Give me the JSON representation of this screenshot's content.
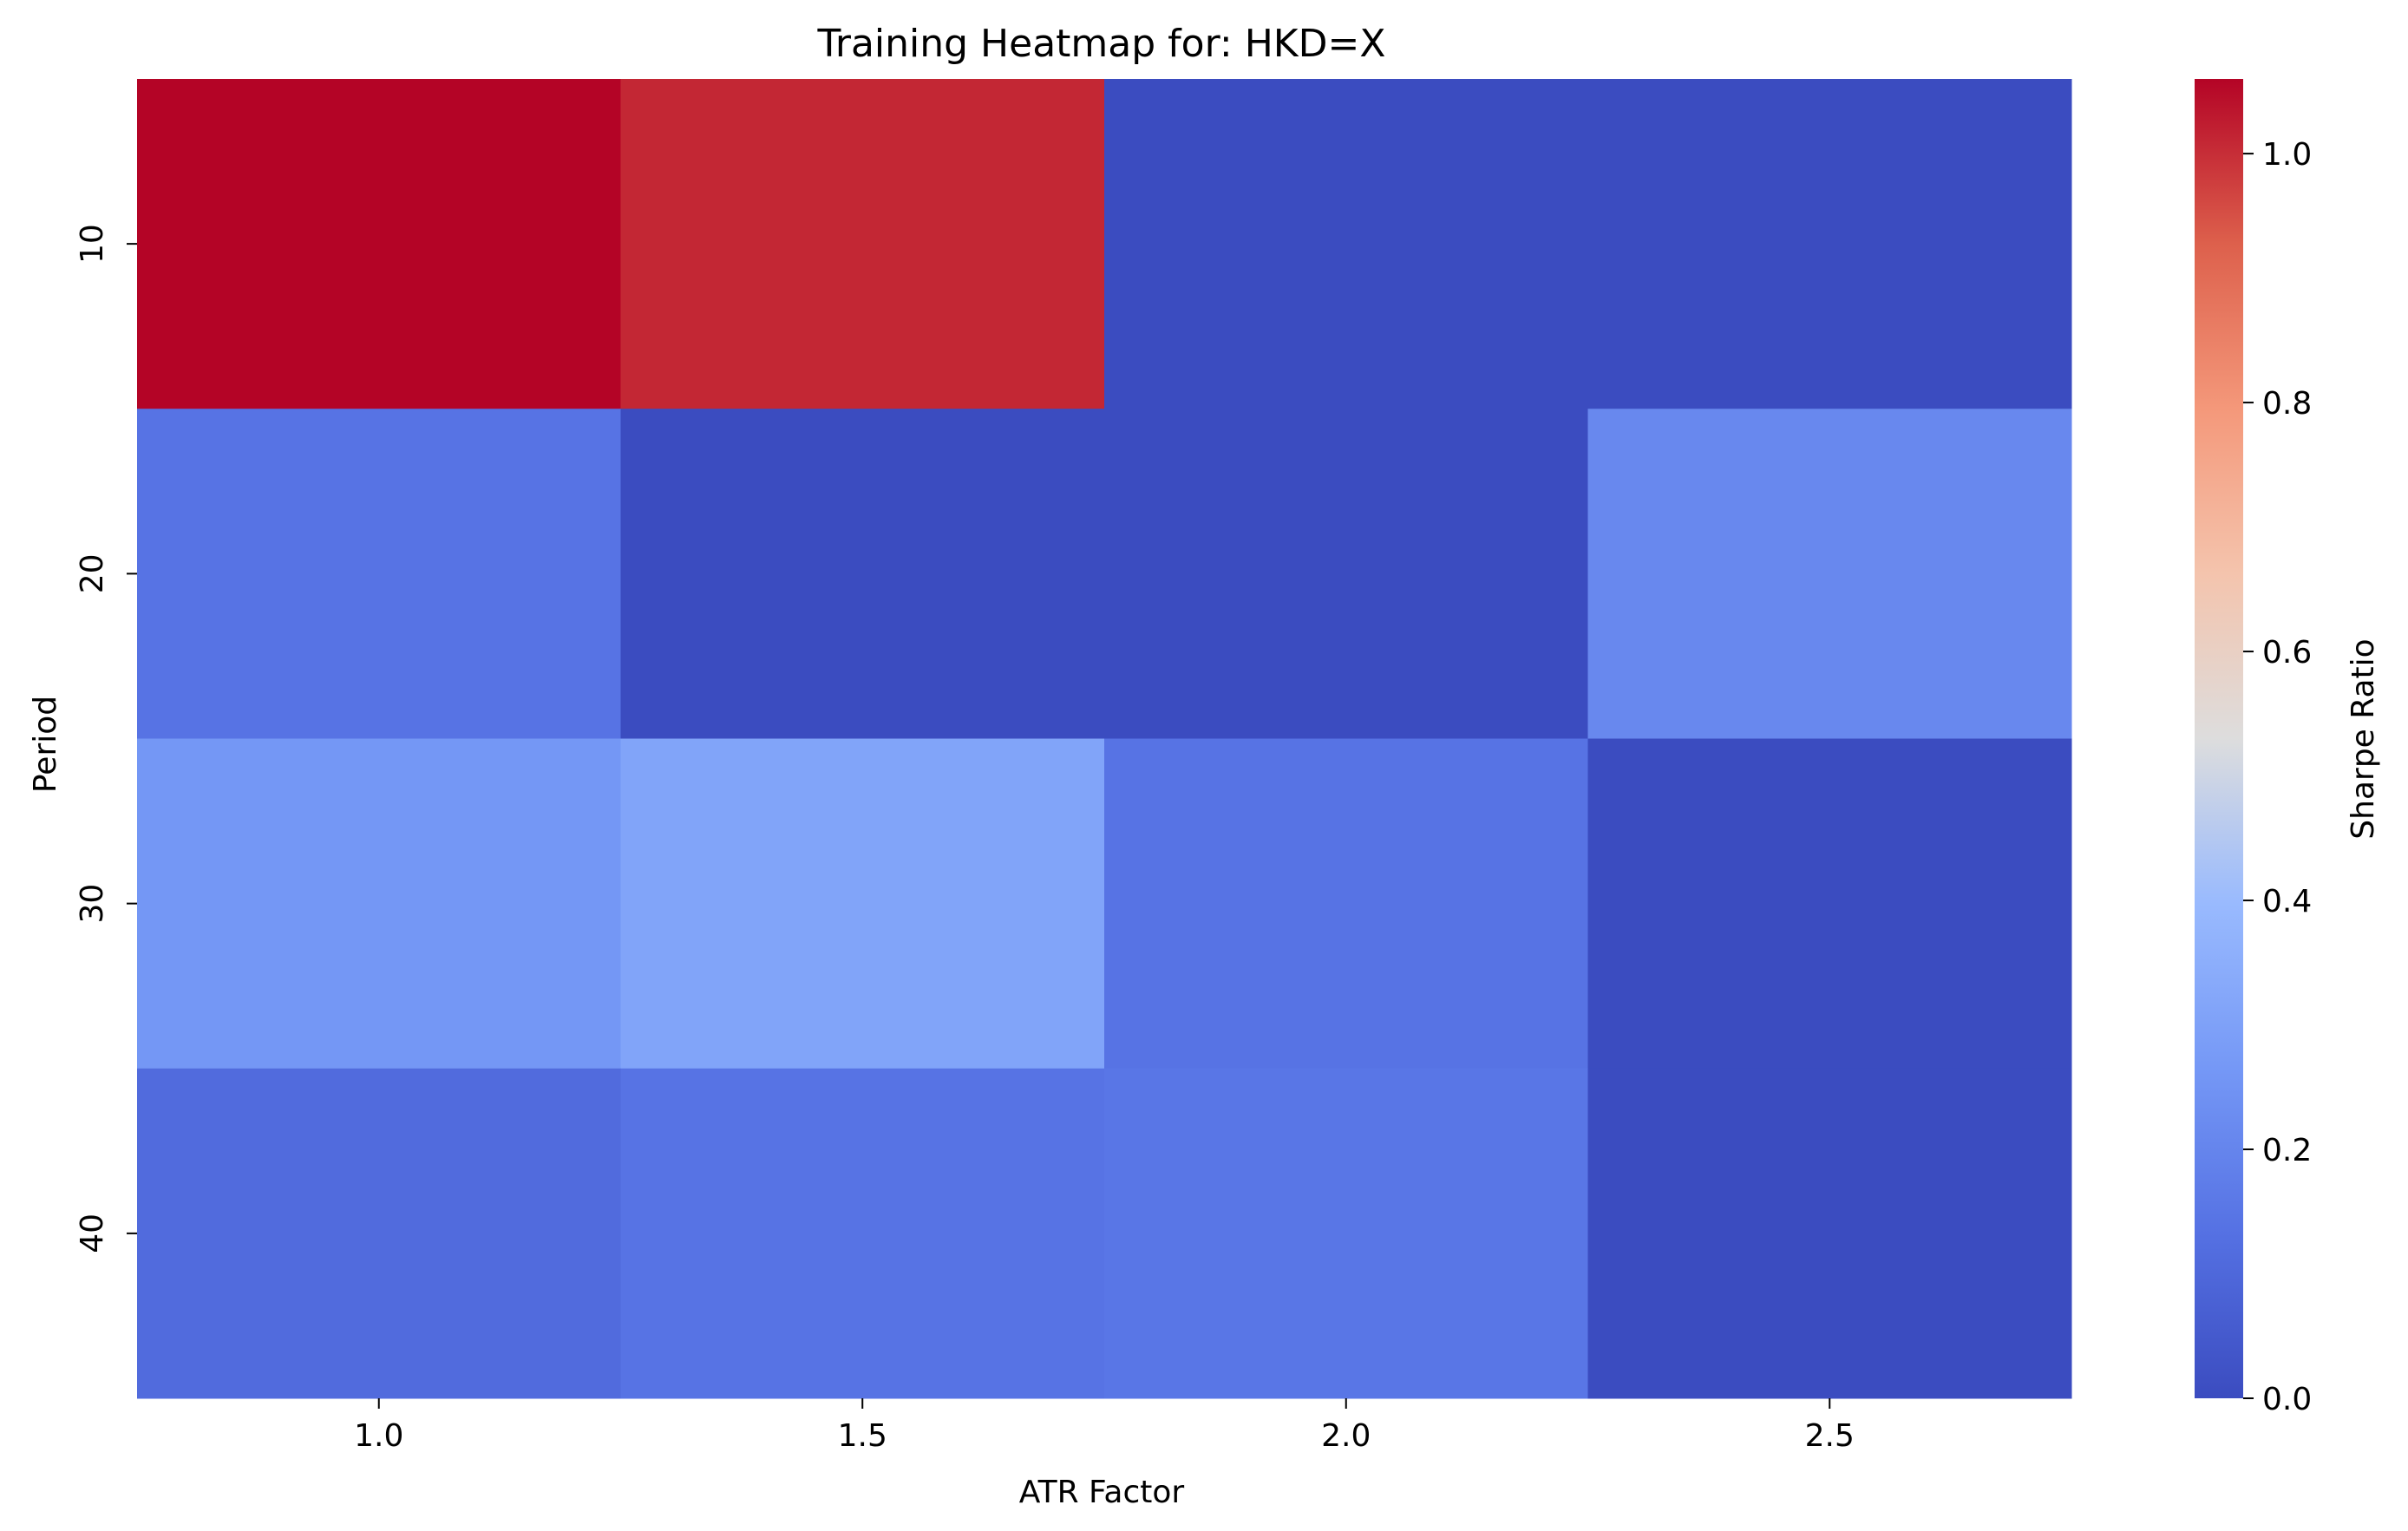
{
  "chart_data": {
    "type": "heatmap",
    "title": "Training Heatmap for: HKD=X",
    "xlabel": "ATR Factor",
    "ylabel": "Period",
    "x_categories": [
      "1.0",
      "1.5",
      "2.0",
      "2.5"
    ],
    "y_categories": [
      "10",
      "20",
      "30",
      "40"
    ],
    "values": [
      [
        1.06,
        1.01,
        0.0,
        0.0
      ],
      [
        0.14,
        0.0,
        0.0,
        0.21
      ],
      [
        0.26,
        0.31,
        0.14,
        0.0
      ],
      [
        0.11,
        0.14,
        0.15,
        0.0
      ]
    ],
    "colormap": "coolwarm",
    "color_min": "#3b4cc0",
    "color_mid": "#dddddd",
    "color_max": "#b40426",
    "colorbar": {
      "label": "Sharpe Ratio",
      "range": [
        0.0,
        1.06
      ],
      "ticks": [
        "0.0",
        "0.2",
        "0.4",
        "0.6",
        "0.8",
        "1.0"
      ]
    }
  }
}
